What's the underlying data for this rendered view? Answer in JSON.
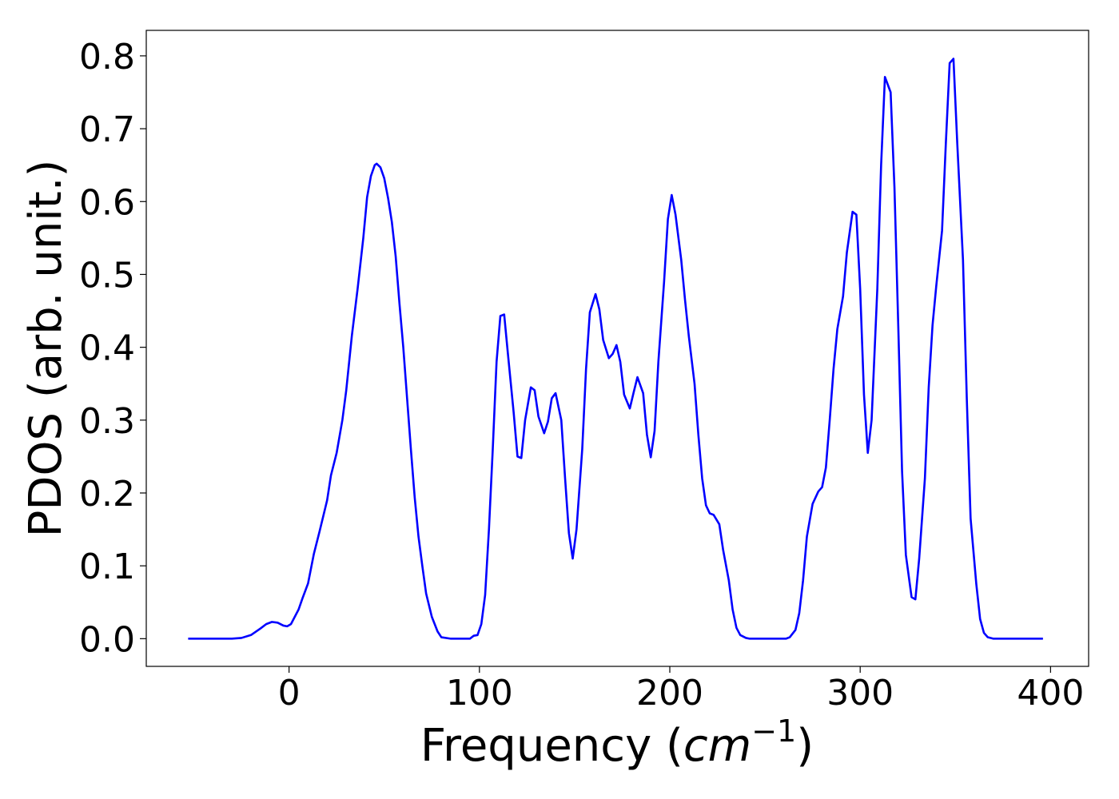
{
  "chart_data": {
    "type": "line",
    "xlabel": [
      "Frequency (",
      "cm",
      "−1",
      ")"
    ],
    "ylabel": "PDOS (arb. unit.)",
    "xlim": [
      -75,
      420
    ],
    "ylim": [
      -0.038,
      0.835
    ],
    "xticks": [
      0,
      100,
      200,
      300,
      400
    ],
    "yticks": [
      {
        "value": 0,
        "label": "0.0"
      },
      0.1,
      0.2,
      0.3,
      0.4,
      0.5,
      0.6,
      0.7,
      0.8
    ],
    "grid": false,
    "x": [
      -53,
      -30,
      -25,
      -20,
      -15,
      -12,
      -9,
      -6,
      -3,
      -1,
      1,
      3,
      5,
      7,
      10,
      13,
      16,
      20,
      22,
      25,
      28,
      30,
      33,
      36,
      39,
      41,
      43,
      45,
      46,
      48,
      50,
      52,
      54,
      56,
      58,
      60,
      62,
      64,
      66,
      68,
      70,
      72,
      75,
      78,
      80,
      85,
      95,
      97,
      99,
      101,
      103,
      105,
      107,
      109,
      111,
      113,
      115,
      118,
      120,
      122,
      124,
      127,
      129,
      131,
      134,
      136,
      138,
      140,
      143,
      145,
      147,
      149,
      151,
      154,
      156,
      158,
      161,
      163,
      165,
      168,
      170,
      172,
      174,
      176,
      179,
      181,
      183,
      186,
      188,
      190,
      192,
      194,
      197,
      199,
      201,
      203,
      206,
      208,
      210,
      213,
      215,
      217,
      219,
      221,
      223,
      226,
      228,
      231,
      233,
      235,
      237,
      240,
      242,
      261,
      263,
      266,
      268,
      270,
      272,
      275,
      278,
      280,
      282,
      284,
      286,
      288,
      291,
      293,
      296,
      298,
      300,
      302,
      304,
      306,
      309,
      311,
      313,
      316,
      318,
      320,
      322,
      324,
      327,
      329,
      331,
      334,
      336,
      338,
      340,
      343,
      345,
      347,
      349,
      351,
      354,
      356,
      358,
      361,
      363,
      365,
      367,
      370,
      396
    ],
    "series": [
      {
        "name": "PDOS",
        "color": "#0000ff",
        "values": [
          0,
          0,
          0.001,
          0.005,
          0.014,
          0.02,
          0.023,
          0.022,
          0.018,
          0.017,
          0.02,
          0.03,
          0.04,
          0.055,
          0.076,
          0.116,
          0.147,
          0.19,
          0.224,
          0.255,
          0.3,
          0.34,
          0.416,
          0.48,
          0.55,
          0.606,
          0.635,
          0.65,
          0.652,
          0.647,
          0.632,
          0.605,
          0.572,
          0.525,
          0.46,
          0.4,
          0.33,
          0.26,
          0.194,
          0.14,
          0.1,
          0.062,
          0.03,
          0.01,
          0.002,
          0,
          0,
          0.004,
          0.005,
          0.02,
          0.06,
          0.15,
          0.26,
          0.38,
          0.443,
          0.445,
          0.39,
          0.31,
          0.25,
          0.248,
          0.3,
          0.345,
          0.341,
          0.305,
          0.282,
          0.298,
          0.33,
          0.337,
          0.3,
          0.22,
          0.145,
          0.11,
          0.15,
          0.26,
          0.37,
          0.448,
          0.473,
          0.452,
          0.41,
          0.385,
          0.391,
          0.403,
          0.38,
          0.335,
          0.316,
          0.338,
          0.359,
          0.337,
          0.28,
          0.249,
          0.285,
          0.38,
          0.49,
          0.576,
          0.609,
          0.582,
          0.52,
          0.465,
          0.415,
          0.35,
          0.28,
          0.22,
          0.183,
          0.172,
          0.17,
          0.157,
          0.122,
          0.08,
          0.04,
          0.015,
          0.005,
          0.001,
          0,
          0,
          0.002,
          0.012,
          0.035,
          0.08,
          0.14,
          0.185,
          0.202,
          0.208,
          0.235,
          0.3,
          0.37,
          0.425,
          0.47,
          0.53,
          0.586,
          0.582,
          0.48,
          0.335,
          0.255,
          0.3,
          0.48,
          0.65,
          0.771,
          0.75,
          0.62,
          0.43,
          0.23,
          0.115,
          0.057,
          0.054,
          0.11,
          0.22,
          0.345,
          0.43,
          0.485,
          0.56,
          0.68,
          0.79,
          0.796,
          0.68,
          0.52,
          0.33,
          0.165,
          0.075,
          0.027,
          0.008,
          0.002,
          0,
          0
        ]
      }
    ]
  }
}
